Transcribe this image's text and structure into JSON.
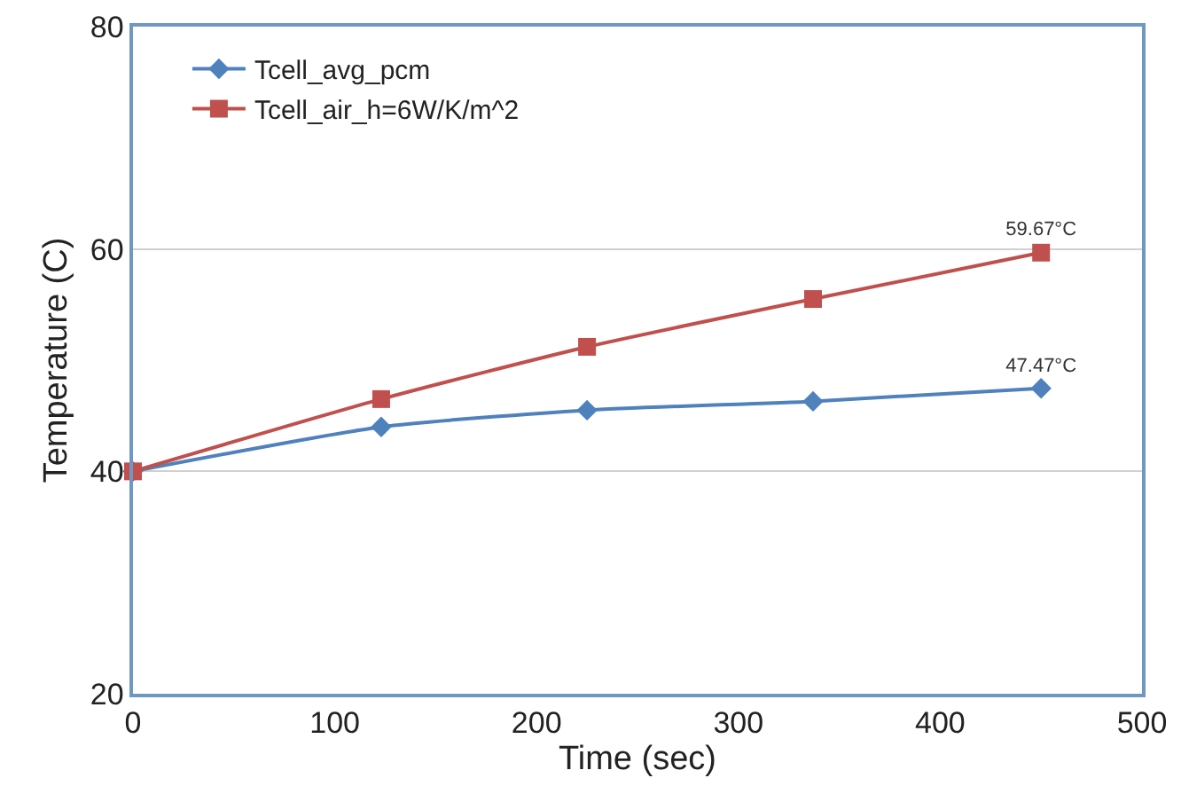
{
  "chart_data": {
    "type": "line",
    "xlabel": "Time (sec)",
    "ylabel": "Temperature (C)",
    "xlim": [
      0,
      500
    ],
    "xticks": [
      0,
      100,
      200,
      300,
      400,
      500
    ],
    "ylim": [
      20,
      80
    ],
    "yticks": [
      20,
      40,
      60,
      80
    ],
    "grid": "y",
    "legend": "top left",
    "series": [
      {
        "name": "Tcell_avg_pcm",
        "color": "#4f81bd",
        "marker": "diamond",
        "x": [
          0,
          123,
          225,
          337,
          450
        ],
        "values": [
          40,
          44.0,
          45.5,
          46.3,
          47.47
        ],
        "value_labels": [
          null,
          null,
          null,
          null,
          "47.47°C"
        ]
      },
      {
        "name": "Tcell_air_h=6W/K/m^2",
        "color": "#c0504d",
        "marker": "square",
        "x": [
          0,
          123,
          225,
          337,
          450
        ],
        "values": [
          40,
          46.5,
          51.2,
          55.5,
          59.67
        ],
        "value_labels": [
          null,
          null,
          null,
          null,
          "59.67°C"
        ]
      }
    ]
  }
}
